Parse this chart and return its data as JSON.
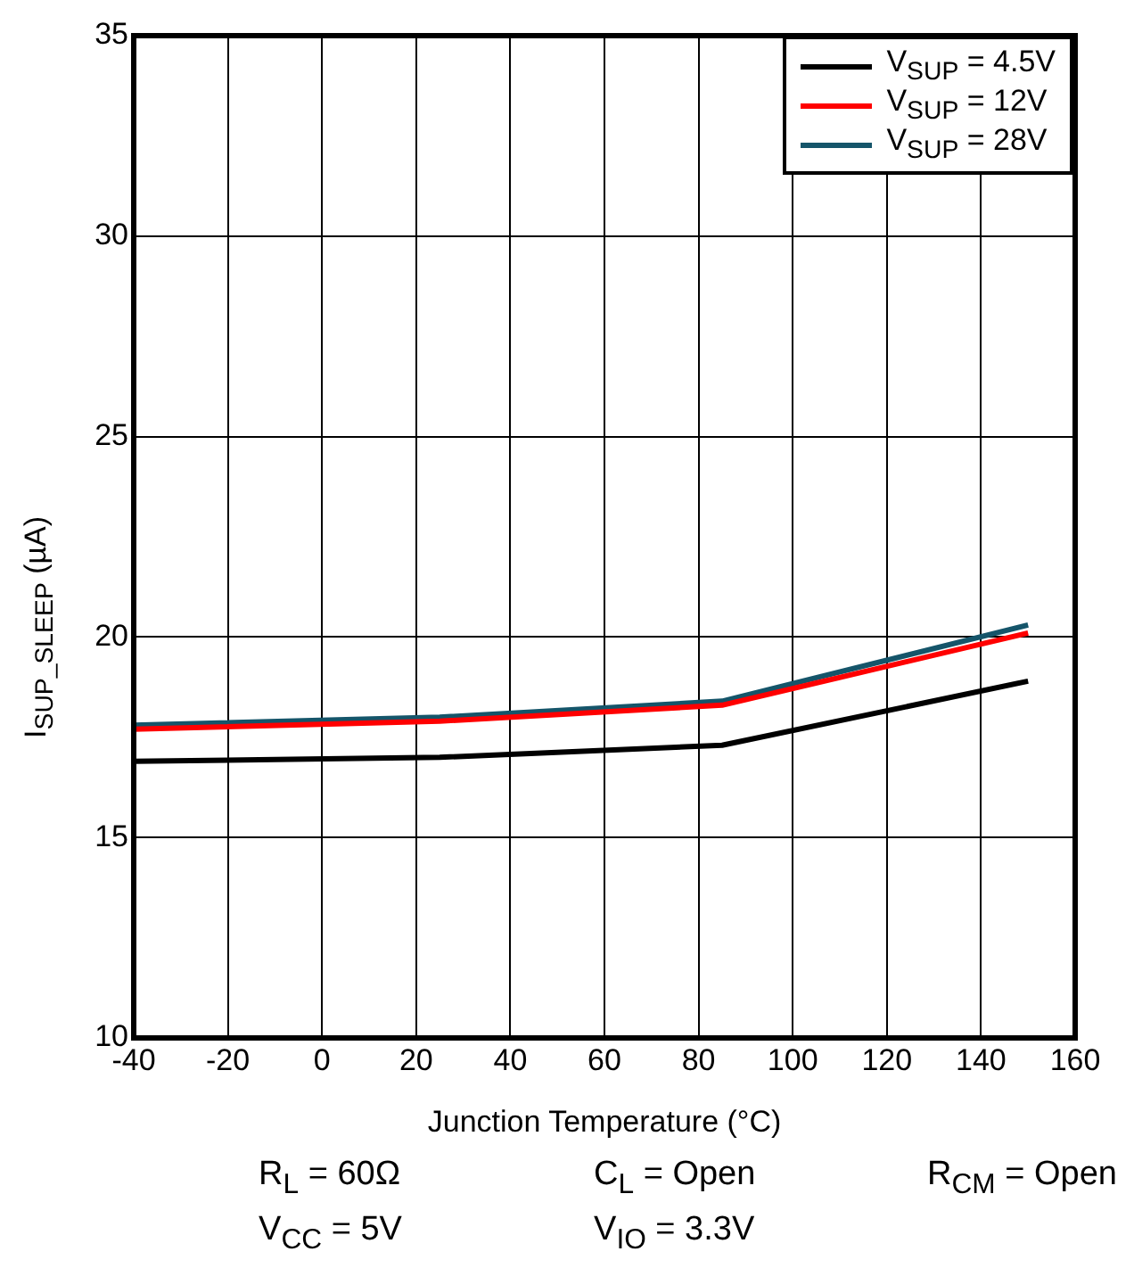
{
  "chart_data": {
    "type": "line",
    "xlabel": "Junction Temperature (°C)",
    "ylabel": "I$_{SUP_SLEEP}$ (µA)",
    "x": [
      -40,
      25,
      85,
      150
    ],
    "series": [
      {
        "name": "V$_{SUP}$ = 4.5V",
        "color": "#000000",
        "values": [
          16.9,
          17.0,
          17.3,
          18.9
        ]
      },
      {
        "name": "V$_{SUP}$ = 12V",
        "color": "#ff0000",
        "values": [
          17.7,
          17.9,
          18.3,
          20.1
        ]
      },
      {
        "name": "V$_{SUP}$ = 28V",
        "color": "#15556a",
        "values": [
          17.8,
          18.0,
          18.4,
          20.3
        ]
      }
    ],
    "xlim": [
      -40,
      160
    ],
    "xticks": [
      -40,
      -20,
      0,
      20,
      40,
      60,
      80,
      100,
      120,
      140,
      160
    ],
    "ylim": [
      10,
      35
    ],
    "yticks": [
      10,
      15,
      20,
      25,
      30,
      35
    ],
    "grid": true,
    "legend": "top right",
    "marker": "none",
    "line_style": "solid",
    "annotations": [
      "R$_{L}$ = 60Ω",
      "C$_{L}$ = Open",
      "R$_{CM}$ = Open",
      "V$_{CC}$ = 5V",
      "V$_{IO}$ = 3.3V"
    ]
  }
}
